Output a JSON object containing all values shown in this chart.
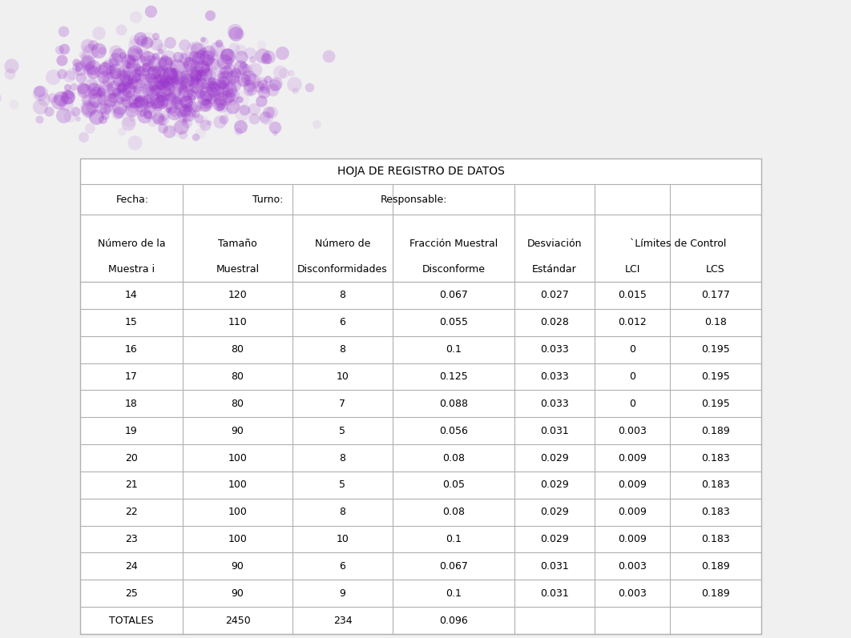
{
  "title": "HOJA DE REGISTRO DE DATOS",
  "rows": [
    [
      "14",
      "120",
      "8",
      "0.067",
      "0.027",
      "0.015",
      "0.177"
    ],
    [
      "15",
      "110",
      "6",
      "0.055",
      "0.028",
      "0.012",
      "0.18"
    ],
    [
      "16",
      "80",
      "8",
      "0.1",
      "0.033",
      "0",
      "0.195"
    ],
    [
      "17",
      "80",
      "10",
      "0.125",
      "0.033",
      "0",
      "0.195"
    ],
    [
      "18",
      "80",
      "7",
      "0.088",
      "0.033",
      "0",
      "0.195"
    ],
    [
      "19",
      "90",
      "5",
      "0.056",
      "0.031",
      "0.003",
      "0.189"
    ],
    [
      "20",
      "100",
      "8",
      "0.08",
      "0.029",
      "0.009",
      "0.183"
    ],
    [
      "21",
      "100",
      "5",
      "0.05",
      "0.029",
      "0.009",
      "0.183"
    ],
    [
      "22",
      "100",
      "8",
      "0.08",
      "0.029",
      "0.009",
      "0.183"
    ],
    [
      "23",
      "100",
      "10",
      "0.1",
      "0.029",
      "0.009",
      "0.183"
    ],
    [
      "24",
      "90",
      "6",
      "0.067",
      "0.031",
      "0.003",
      "0.189"
    ],
    [
      "25",
      "90",
      "9",
      "0.1",
      "0.031",
      "0.003",
      "0.189"
    ],
    [
      "TOTALES",
      "2450",
      "234",
      "0.096",
      "",
      "",
      ""
    ]
  ],
  "header1": [
    "Número de la",
    "Tamaño",
    "Número de",
    "Fracción Muestral",
    "Desviación",
    "`Límites de Control"
  ],
  "header2": [
    "Muestra i",
    "Muestral",
    "Disconformidades",
    "Disconforme",
    "Estándar",
    "LCI",
    "LCS"
  ],
  "meta": [
    "Fecha:",
    "Turno:",
    "Responsable:"
  ],
  "bg_color": "#f0f0f0",
  "table_outer_bg": "#e8e8e8",
  "table_inner_bg": "#ffffff",
  "line_color": "#b0b0b0",
  "text_color": "#000000",
  "font_size": 9.0,
  "title_font_size": 10.0,
  "logo_color": "#9933cc"
}
